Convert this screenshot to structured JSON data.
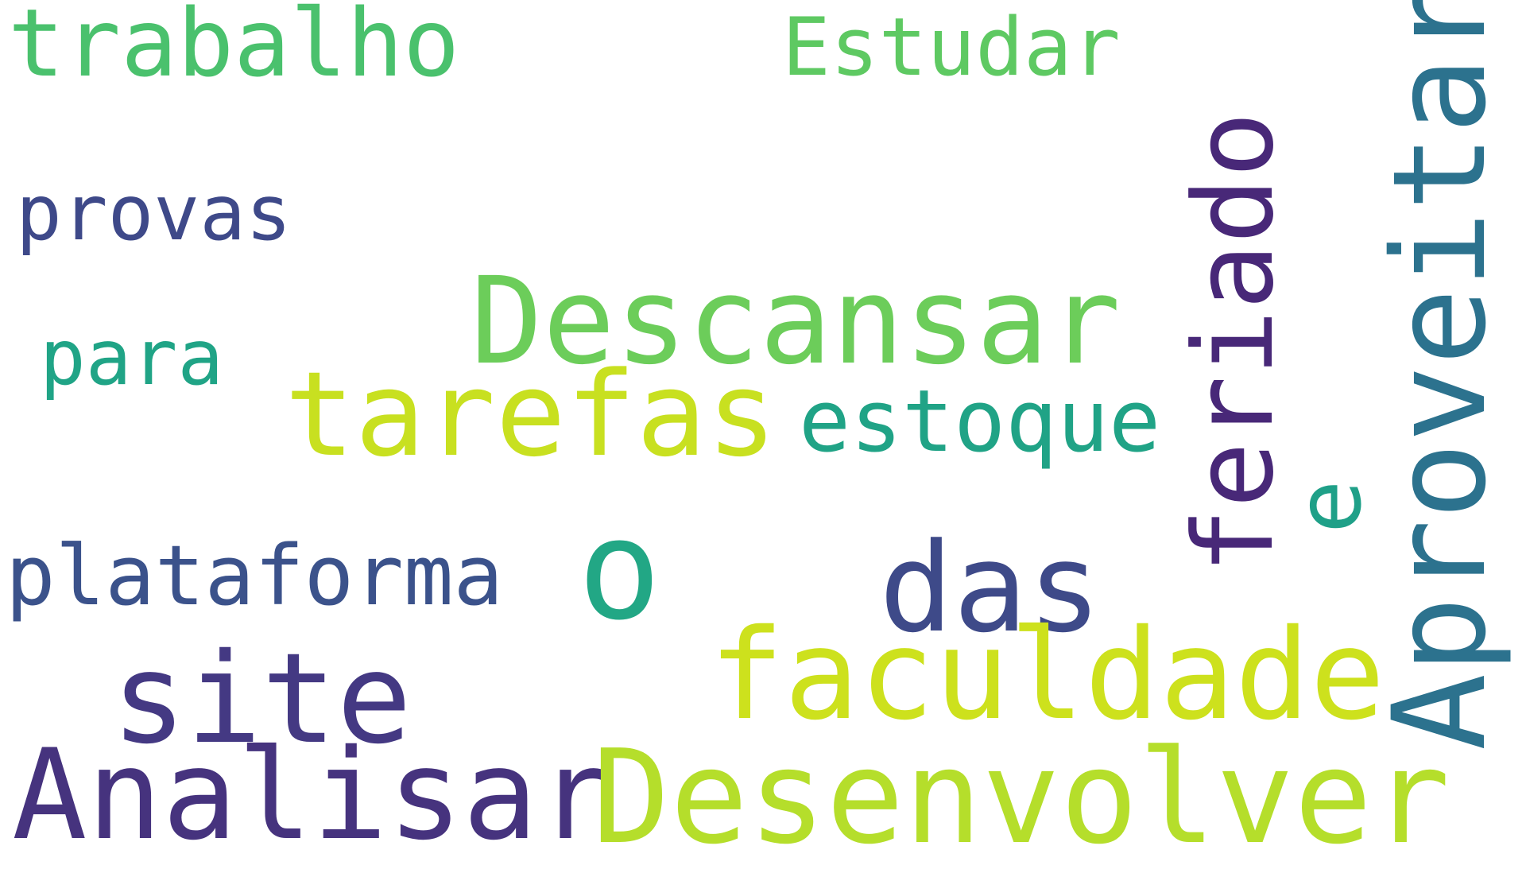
{
  "words": [
    {
      "text": "trabalho",
      "color": "#4ac16d"
    },
    {
      "text": "Estudar",
      "color": "#5ec962"
    },
    {
      "text": "provas",
      "color": "#3e4989"
    },
    {
      "text": "Descansar",
      "color": "#6ccd5a"
    },
    {
      "text": "para",
      "color": "#20a486"
    },
    {
      "text": "tarefas",
      "color": "#c8e020"
    },
    {
      "text": "estoque",
      "color": "#20a386"
    },
    {
      "text": "plataforma",
      "color": "#3b528b"
    },
    {
      "text": "o",
      "color": "#22a785"
    },
    {
      "text": "das",
      "color": "#3e4a89"
    },
    {
      "text": "faculdade",
      "color": "#cde11d"
    },
    {
      "text": "site",
      "color": "#443983"
    },
    {
      "text": "Analisar",
      "color": "#46337e"
    },
    {
      "text": "Desenvolver",
      "color": "#b5de2b"
    },
    {
      "text": "feriado",
      "color": "#482878"
    },
    {
      "text": "e",
      "color": "#1fa088"
    },
    {
      "text": "Aproveitar",
      "color": "#2c728e"
    }
  ]
}
